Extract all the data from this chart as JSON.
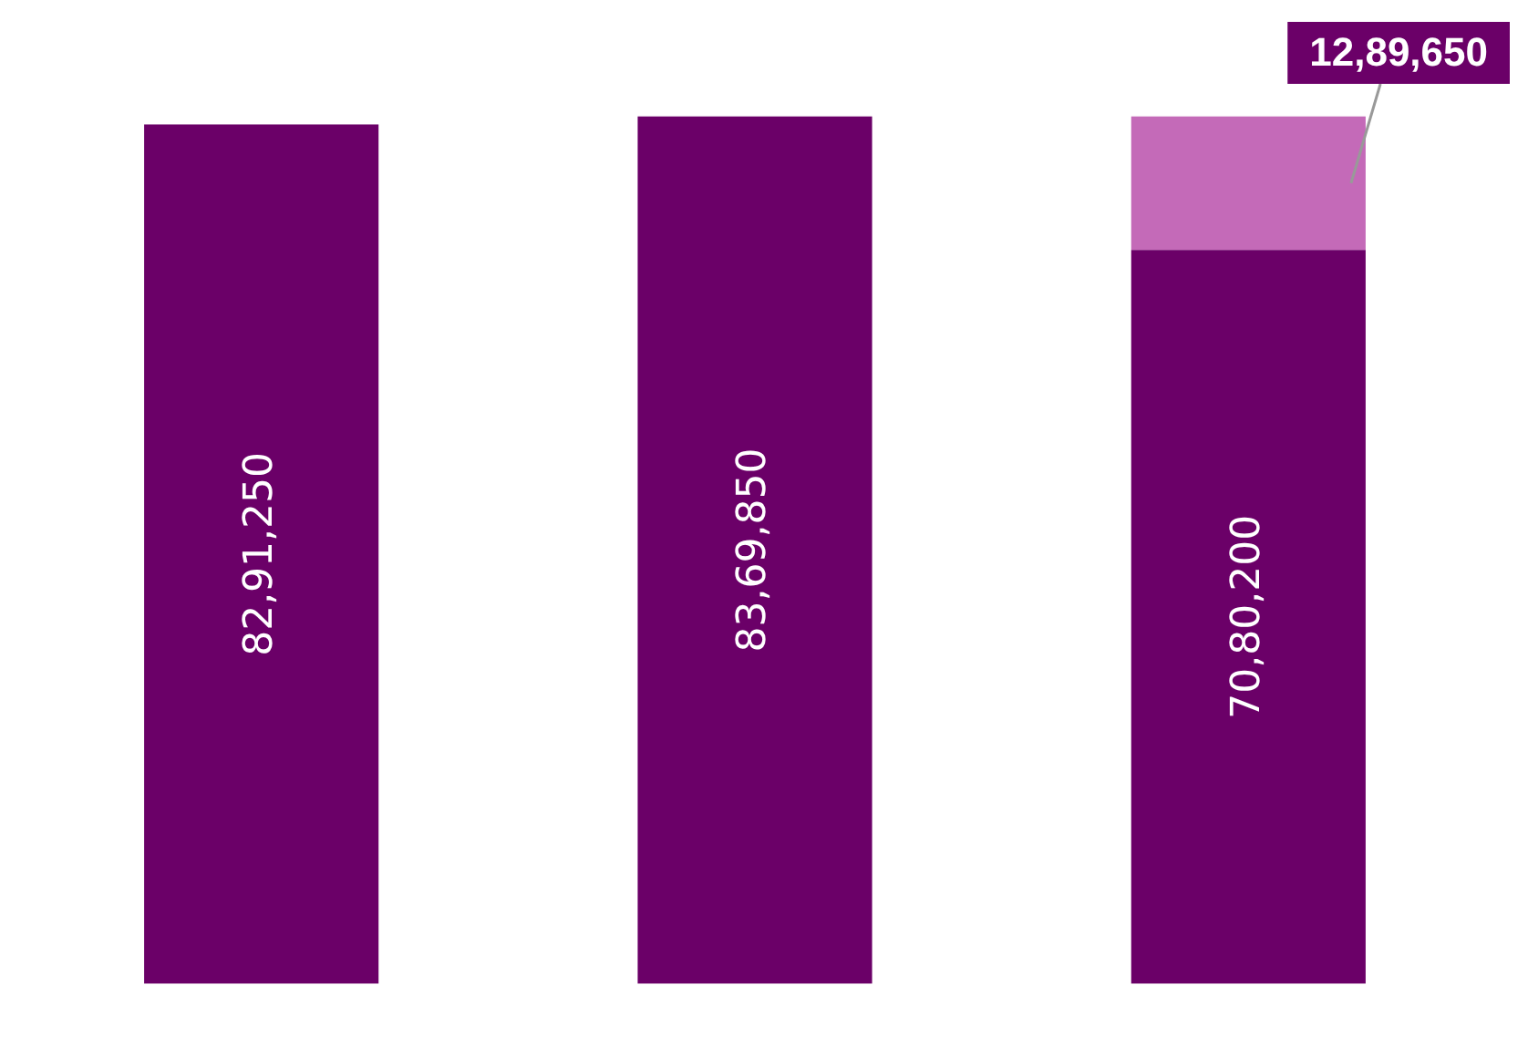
{
  "chart_data": {
    "type": "bar",
    "categories": [
      null,
      null,
      null
    ],
    "stacked": true,
    "grid": false,
    "legend": false,
    "series": [
      {
        "color": "#6b0068",
        "values": [
          8291250,
          8369850,
          7080200
        ],
        "value_labels": [
          "82,91,250",
          "83,69,850",
          "70,80,200"
        ]
      },
      {
        "color": "#c46ab8",
        "values": [
          null,
          null,
          1289650
        ],
        "value_labels": [
          null,
          null,
          "12,89,650"
        ]
      }
    ]
  }
}
